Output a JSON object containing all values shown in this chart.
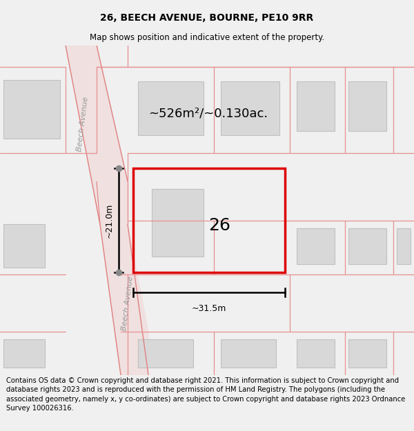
{
  "title": "26, BEECH AVENUE, BOURNE, PE10 9RR",
  "subtitle": "Map shows position and indicative extent of the property.",
  "footer": "Contains OS data © Crown copyright and database right 2021. This information is subject to Crown copyright and database rights 2023 and is reproduced with the permission of HM Land Registry. The polygons (including the associated geometry, namely x, y co-ordinates) are subject to Crown copyright and database rights 2023 Ordnance Survey 100026316.",
  "area_label": "~526m²/~0.130ac.",
  "dim_width": "~31.5m",
  "dim_height": "~21.0m",
  "street_label": "Beech Avenue",
  "map_bg": "#ffffff",
  "page_bg": "#f0f0f0",
  "road_fill": "#f0e0e0",
  "road_edge": "#e08080",
  "bfill": "#d8d8d8",
  "bedge": "#c0c0c0",
  "red": "#dd0000",
  "pink_line": "#e89090",
  "title_fs": 10,
  "subtitle_fs": 8.5,
  "footer_fs": 7.2,
  "num26_fs": 18,
  "area_fs": 13,
  "dim_fs": 9,
  "street_fs": 8
}
